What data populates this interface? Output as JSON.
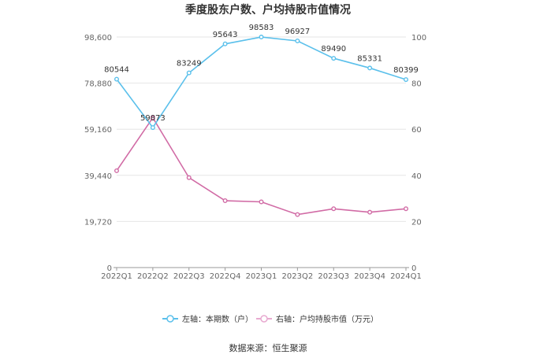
{
  "chart_data": {
    "type": "line",
    "title": "季度股东户数、户均持股市值情况",
    "categories": [
      "2022Q1",
      "2022Q2",
      "2022Q3",
      "2022Q4",
      "2023Q1",
      "2023Q2",
      "2023Q3",
      "2023Q4",
      "2024Q1"
    ],
    "left_axis": {
      "min": 0,
      "max": 98600,
      "ticks": [
        "0",
        "19,720",
        "39,440",
        "59,160",
        "78,880",
        "98,600"
      ]
    },
    "right_axis": {
      "min": 0,
      "max": 100,
      "ticks": [
        "0",
        "20",
        "40",
        "60",
        "80",
        "100"
      ]
    },
    "series": [
      {
        "name": "左轴：本期数（户）",
        "axis": "left",
        "color": "#5bc0eb",
        "values": [
          80544,
          59873,
          83249,
          95643,
          98583,
          96927,
          89490,
          85331,
          80399
        ],
        "labels": [
          "80544",
          "59873",
          "83249",
          "95643",
          "98583",
          "96927",
          "89490",
          "85331",
          "80399"
        ]
      },
      {
        "name": "右轴：户均持股市值（万元）",
        "axis": "right",
        "color": "#d16ba5",
        "values": [
          42.0,
          65.0,
          39.0,
          29.0,
          28.5,
          23.0,
          25.5,
          24.0,
          25.5
        ]
      }
    ],
    "grid": true,
    "legend_position": "bottom"
  },
  "source": "数据来源：恒生聚源"
}
